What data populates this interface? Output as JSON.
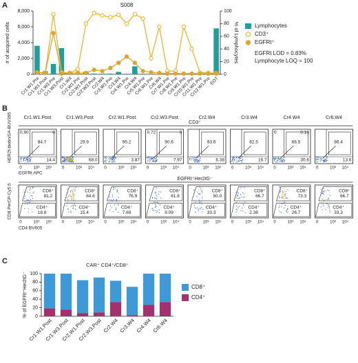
{
  "chart_data": [
    {
      "type": "combo",
      "panel": "A",
      "title": "S008",
      "categories": [
        "Cr1.W1.Pre",
        "Cr1.W1.Post",
        "Cr1.W3.Pre",
        "Cr1.W3.Post",
        "Cr1.W4",
        "Cr2.W1.Pre",
        "Cr2.W1.Post",
        "Cr2.W3.Post",
        "Cr2.W4",
        "Cr3.W1.Pre",
        "Cr3.W4",
        "Cr4.W1.Pre",
        "Cr4.W4",
        "Cr5.W1.Pre",
        "Cr6.W1.Pre",
        "Cr6.W4",
        "Cr7.W1.Pre",
        "Cr8.W1.Pre",
        "Cr9.W1.Pre",
        "Cr10.W1.Pre",
        "Cr11.W1.Pre",
        "Cr12.W1.Pre",
        "EOT"
      ],
      "ylabel": "# of acquired cells",
      "y2label": "% of Lymphocytes",
      "ylim": [
        0,
        8000
      ],
      "yticks": [
        0,
        {
          "value": 2000,
          "label": "2,000"
        },
        {
          "value": 4000,
          "label": "4,000"
        },
        {
          "value": 6000,
          "label": "6,000"
        },
        {
          "value": 8000,
          "label": "8,000"
        }
      ],
      "y2lim": [
        0,
        100
      ],
      "y2ticks": [
        0,
        20,
        40,
        60,
        80,
        100
      ],
      "series": [
        {
          "name": "Lymphocytes",
          "type": "bar",
          "color": "#1f9e9a",
          "values": [
            3600,
            400,
            1300,
            3300,
            120,
            60,
            350,
            80,
            60,
            80,
            300,
            60,
            1000,
            60,
            60,
            60,
            60,
            60,
            60,
            60,
            60,
            60,
            5800
          ]
        },
        {
          "name": "CD3⁺",
          "type": "line",
          "marker": "open",
          "axis": "y2",
          "color": "#f0b429",
          "values": [
            3,
            2,
            95,
            3,
            2,
            8,
            80,
            97,
            93,
            90,
            94,
            80,
            95,
            88,
            25,
            75,
            5,
            5,
            75,
            40,
            3,
            2,
            2
          ]
        },
        {
          "name": "EGFRt⁺",
          "type": "line",
          "marker": "filled",
          "axis": "y2",
          "color": "#dca52c",
          "values": [
            3,
            2,
            65,
            1,
            2,
            2,
            2,
            7,
            5,
            10,
            18,
            28,
            18,
            5,
            3,
            2,
            1,
            1,
            1,
            1,
            1,
            1,
            1
          ]
        }
      ],
      "annotations": [
        "EGFRt LOD = 0.83%",
        "Lymphocyte LOQ = 100"
      ]
    },
    {
      "type": "stacked_bar",
      "panel": "C",
      "title": "CAR⁺ CD4⁺/CD8⁺",
      "categories": [
        "Cr1.W1.Post",
        "Cr1.W3.Post",
        "Cr2.W1.Post",
        "Cr2.W3.Post",
        "Cr2.W4",
        "Cr3.W4",
        "Cr4.W4",
        "Cr6.W4"
      ],
      "ylabel": "% of EGFRt⁺Her2tG⁻",
      "ylim": [
        0,
        100
      ],
      "yticks": [
        0,
        20,
        40,
        60,
        80,
        100
      ],
      "series": [
        {
          "name": "CD4⁺",
          "color": "#a3326c",
          "values": [
            18.8,
            15.4,
            7.69,
            9.09,
            33.3,
            2.38,
            26.7,
            33.3
          ]
        },
        {
          "name": "CD8⁺",
          "color": "#3d9ad6",
          "values": [
            81.2,
            84.6,
            76.9,
            81.8,
            50.0,
            66.7,
            73.3,
            66.7
          ]
        }
      ]
    }
  ],
  "flow": {
    "panel": "B",
    "samples": [
      "Cr1.W1.Post",
      "Cr1.W3.Post",
      "Cr2.W1.Post",
      "Cr2.W3.Post",
      "Cr2.W4",
      "Cr3.W4",
      "Cr4.W4",
      "Cr6.W4"
    ],
    "xticks": [
      "0",
      "10³",
      "10⁴"
    ],
    "top": {
      "header": "CD3⁺",
      "ylabel": "HER2t-biotin/SA-BUV395",
      "xlabel": "EGFRt APC",
      "plots": [
        {
          "ul": "0.90",
          "ur": "0",
          "gate": "84.7",
          "lr": "14.4"
        },
        {
          "gate": "29.9",
          "lr": "68.0"
        },
        {
          "gate": "95.2",
          "lr": "3.87"
        },
        {
          "ul": "0.72",
          "ur": "0",
          "gate": "90.6",
          "lr": "7.97"
        },
        {
          "gate": "93.6",
          "lr": "6.38"
        },
        {
          "gate": "82.5",
          "lr": "16.7"
        },
        {
          "ul": "0",
          "ur": "0.10",
          "gate": "66.5",
          "lr": "30.6"
        },
        {
          "gate": "86.4",
          "lr": "13.6"
        }
      ]
    },
    "bottom": {
      "header": "EGFRt⁺Her2tG⁻",
      "ylabel": "CD8 PerCP-Cy5.5",
      "xlabel": "CD4 BV605",
      "cd8_label": "CD8⁺",
      "cd4_label": "CD4⁺",
      "plots": [
        {
          "cd8": "81.2",
          "cd4": "18.8"
        },
        {
          "cd8": "84.6",
          "cd4": "15.4"
        },
        {
          "cd8": "76.9",
          "cd4": "7.69"
        },
        {
          "cd8": "81.8",
          "cd4": "9.09"
        },
        {
          "cd8": "50.0",
          "cd4": "33.3"
        },
        {
          "cd8": "66.7",
          "cd4": "2.38"
        },
        {
          "cd8": "73.3",
          "cd4": "26.7"
        },
        {
          "cd8": "66.7",
          "cd4": "33.3"
        }
      ]
    }
  }
}
